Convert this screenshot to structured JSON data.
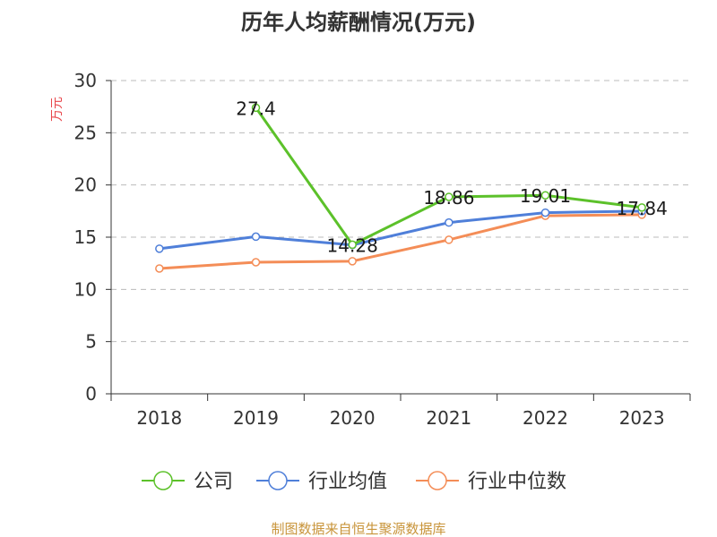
{
  "colors": {
    "axis": "#333333",
    "grid": "#bbbbbb",
    "ylabel": "#e8464b",
    "source": "#c8943a"
  },
  "source_text": "制图数据来自恒生聚源数据库",
  "chart_data": {
    "type": "line",
    "title": "历年人均薪酬情况(万元)",
    "ylabel": "万元",
    "xlabel": "",
    "categories": [
      "2018",
      "2019",
      "2020",
      "2021",
      "2022",
      "2023"
    ],
    "ylim": [
      0,
      30
    ],
    "yticks": [
      0,
      5,
      10,
      15,
      20,
      25,
      30
    ],
    "grid": true,
    "legend_position": "bottom",
    "series": [
      {
        "name": "公司",
        "color": "#5cc12a",
        "values": [
          null,
          27.4,
          14.28,
          18.86,
          19.01,
          17.84
        ],
        "labels": [
          null,
          "27.4",
          "14.28",
          "18.86",
          "19.01",
          "17.84"
        ]
      },
      {
        "name": "行业均值",
        "color": "#4f7fd9",
        "values": [
          13.9,
          15.05,
          14.25,
          16.4,
          17.35,
          17.5
        ],
        "labels": []
      },
      {
        "name": "行业中位数",
        "color": "#f48d57",
        "values": [
          12.0,
          12.6,
          12.7,
          14.75,
          17.05,
          17.15
        ],
        "labels": []
      }
    ]
  }
}
